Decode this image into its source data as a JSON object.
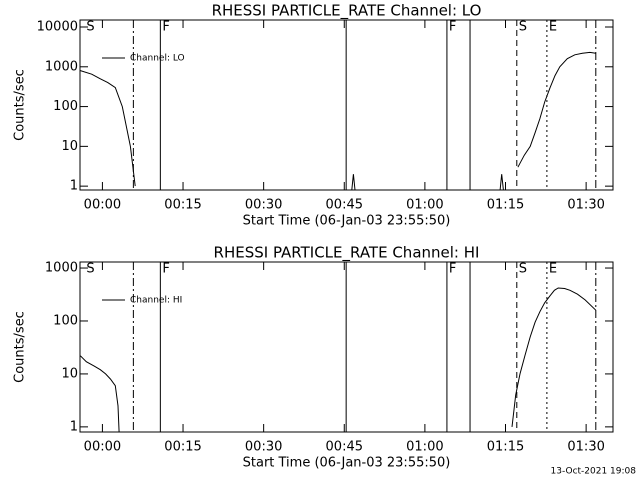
{
  "chart_data": [
    {
      "type": "line",
      "title": "RHESSI PARTICLE_RATE Channel: LO",
      "xlabel": "Start Time (06-Jan-03 23:55:50)",
      "ylabel": "Counts/sec",
      "log_y": true,
      "xlim": [
        -4.17,
        95
      ],
      "ylim": [
        0.8,
        15000
      ],
      "xticks": [
        {
          "value": 0,
          "label": "00:00"
        },
        {
          "value": 15,
          "label": "00:15"
        },
        {
          "value": 30,
          "label": "00:30"
        },
        {
          "value": 45,
          "label": "00:45"
        },
        {
          "value": 60,
          "label": "01:00"
        },
        {
          "value": 75,
          "label": "01:15"
        },
        {
          "value": 90,
          "label": "01:30"
        }
      ],
      "yticks": [
        1,
        10,
        100,
        1000,
        10000
      ],
      "series": [
        {
          "name": "Channel: LO",
          "color": "#000000",
          "x": [
            -4.1,
            -2,
            -0.4,
            1,
            2.4,
            3.7,
            5.2,
            6.1,
            null,
            46.4,
            46.7,
            47,
            null,
            74,
            74.3,
            74.6,
            null,
            77.3,
            78.5,
            79.6,
            80.5,
            81.4,
            82.3,
            83.3,
            84.2,
            85.1,
            86.5,
            87.9,
            89.3,
            90.7,
            91.8
          ],
          "values": [
            800,
            650,
            500,
            400,
            300,
            100,
            10,
            1,
            null,
            0.8,
            2,
            0.8,
            null,
            0.8,
            2,
            0.8,
            null,
            3,
            6,
            10,
            22,
            50,
            130,
            300,
            600,
            1000,
            1600,
            2000,
            2200,
            2300,
            2200
          ]
        }
      ],
      "legend": "top-left",
      "markers": [
        {
          "x": -3.35,
          "label": "S"
        },
        {
          "x": 5.76,
          "style": "dashdot"
        },
        {
          "x": 10.78,
          "style": "solid",
          "label": "F"
        },
        {
          "x": 45.35,
          "style": "solid"
        },
        {
          "x": 64.1,
          "style": "solid",
          "label": "F"
        },
        {
          "x": 68.4,
          "style": "solid"
        },
        {
          "x": 77.1,
          "style": "dashed",
          "label": "S"
        },
        {
          "x": 82.7,
          "style": "dotted",
          "label": "E"
        },
        {
          "x": 91.8,
          "style": "dashdot"
        }
      ]
    },
    {
      "type": "line",
      "title": "RHESSI PARTICLE_RATE Channel: HI",
      "xlabel": "Start Time (06-Jan-03 23:55:50)",
      "ylabel": "Counts/sec",
      "log_y": true,
      "xlim": [
        -4.17,
        95
      ],
      "ylim": [
        0.8,
        1300
      ],
      "xticks": [
        {
          "value": 0,
          "label": "00:00"
        },
        {
          "value": 15,
          "label": "00:15"
        },
        {
          "value": 30,
          "label": "00:30"
        },
        {
          "value": 45,
          "label": "00:45"
        },
        {
          "value": 60,
          "label": "01:00"
        },
        {
          "value": 75,
          "label": "01:15"
        },
        {
          "value": 90,
          "label": "01:30"
        }
      ],
      "yticks": [
        1,
        10,
        100,
        1000
      ],
      "series": [
        {
          "name": "Channel: HI",
          "color": "#000000",
          "x": [
            -4.1,
            -3,
            -1.5,
            -0.4,
            0.6,
            1.5,
            2.4,
            2.9,
            3.1,
            null,
            76.2,
            76.9,
            77.7,
            78.6,
            79.6,
            80.5,
            81.4,
            82.3,
            83.3,
            84.1,
            84.8,
            86,
            87,
            88.4,
            89.8,
            91.8
          ],
          "values": [
            22,
            17,
            14,
            12,
            10,
            8,
            6,
            2.5,
            0.8,
            null,
            1,
            4,
            10,
            22,
            50,
            95,
            150,
            220,
            300,
            380,
            420,
            410,
            380,
            320,
            250,
            160
          ]
        }
      ],
      "legend": "top-left",
      "markers": [
        {
          "x": -3.35,
          "label": "S"
        },
        {
          "x": 5.76,
          "style": "dashdot"
        },
        {
          "x": 10.78,
          "style": "solid",
          "label": "F"
        },
        {
          "x": 45.35,
          "style": "solid"
        },
        {
          "x": 64.1,
          "style": "solid",
          "label": "F"
        },
        {
          "x": 68.4,
          "style": "solid"
        },
        {
          "x": 77.1,
          "style": "dashed",
          "label": "S"
        },
        {
          "x": 82.7,
          "style": "dotted",
          "label": "E"
        },
        {
          "x": 91.8,
          "style": "dashdot"
        }
      ]
    }
  ],
  "footer": "13-Oct-2021 19:08"
}
